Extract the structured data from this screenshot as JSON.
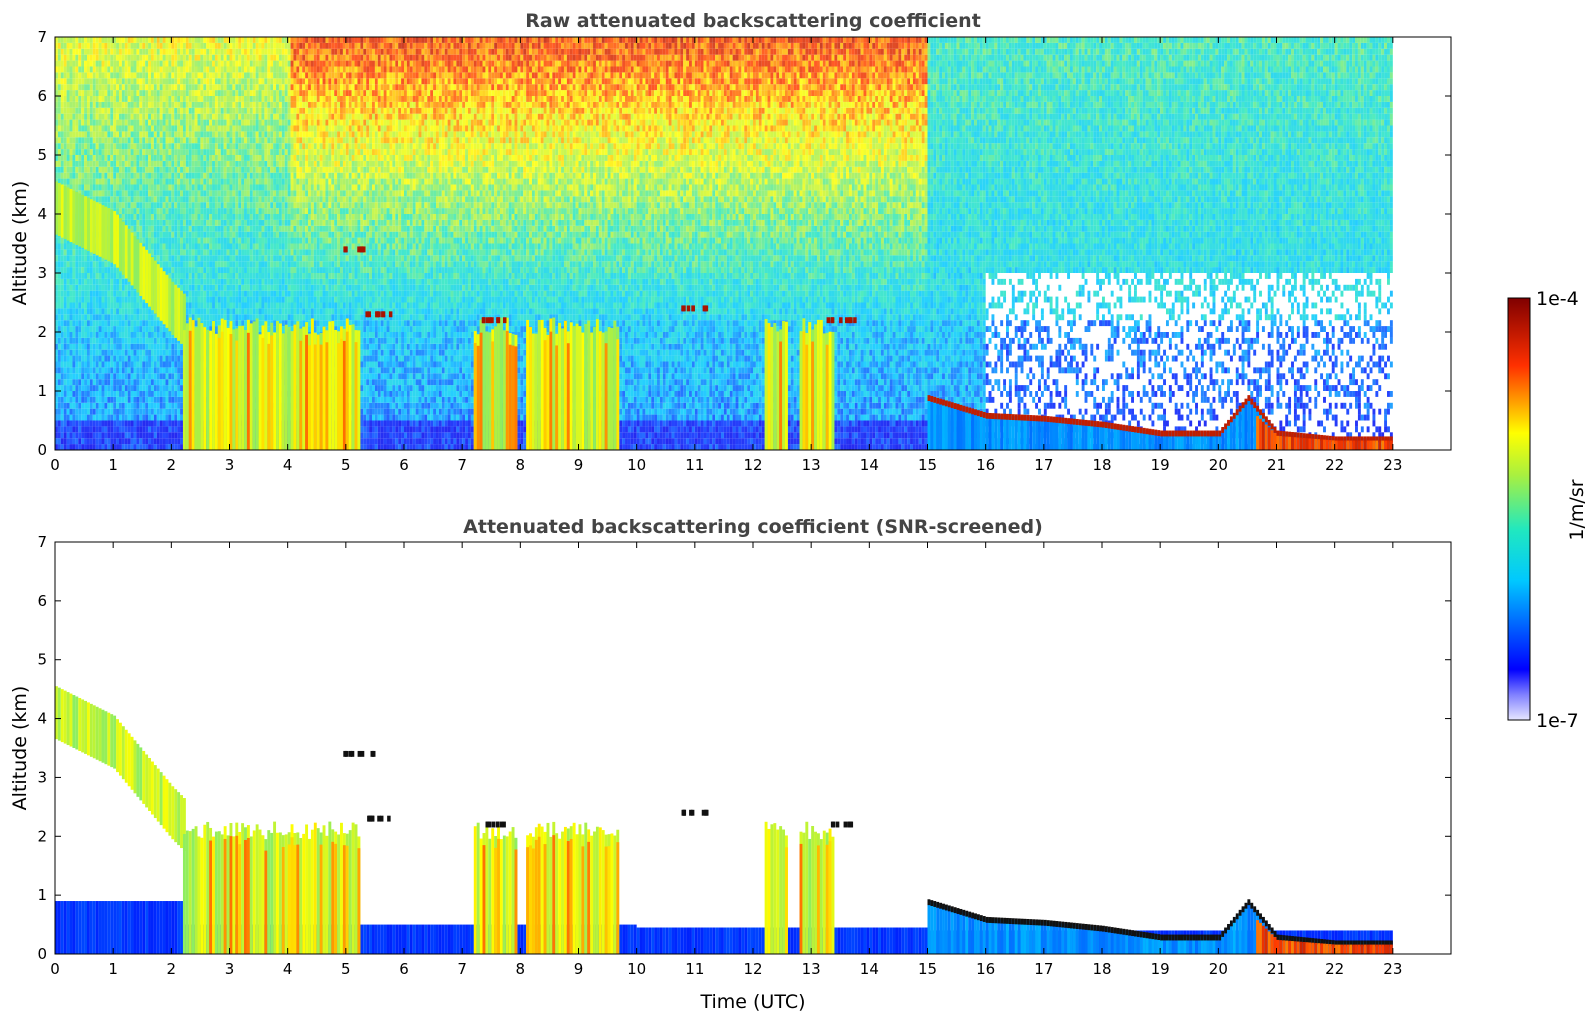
{
  "chart_data": [
    {
      "type": "heatmap",
      "title": "Raw attenuated backscattering coefficient",
      "xlabel": "",
      "ylabel": "Altitude (km)",
      "xlim": [
        0,
        24
      ],
      "ylim": [
        0,
        7
      ],
      "x_ticks": [
        0,
        1,
        2,
        3,
        4,
        5,
        6,
        7,
        8,
        9,
        10,
        11,
        12,
        13,
        14,
        15,
        16,
        17,
        18,
        19,
        20,
        21,
        22,
        23
      ],
      "y_ticks": [
        0,
        1,
        2,
        3,
        4,
        5,
        6,
        7
      ],
      "data_extent_hours": [
        0,
        23
      ],
      "features": {
        "aerosol_layer_descending": [
          [
            0,
            4.1
          ],
          [
            1,
            3.6
          ],
          [
            2,
            2.4
          ],
          [
            2.2,
            2.2
          ]
        ],
        "cloud_tops_km": [
          [
            5.2,
            3.4
          ],
          [
            5.5,
            2.3
          ],
          [
            7.5,
            2.2
          ],
          [
            11.0,
            2.4
          ],
          [
            13.5,
            2.2
          ]
        ],
        "boundary_layer_top": [
          [
            15,
            0.9
          ],
          [
            16,
            0.6
          ],
          [
            17,
            0.55
          ],
          [
            18,
            0.45
          ],
          [
            19,
            0.3
          ],
          [
            20,
            0.3
          ],
          [
            20.5,
            0.9
          ],
          [
            21,
            0.3
          ],
          [
            22,
            0.2
          ],
          [
            23,
            0.2
          ]
        ]
      }
    },
    {
      "type": "heatmap",
      "title": "Attenuated backscattering coefficient (SNR-screened)",
      "xlabel": "Time (UTC)",
      "ylabel": "Altitude (km)",
      "xlim": [
        0,
        24
      ],
      "ylim": [
        0,
        7
      ],
      "x_ticks": [
        0,
        1,
        2,
        3,
        4,
        5,
        6,
        7,
        8,
        9,
        10,
        11,
        12,
        13,
        14,
        15,
        16,
        17,
        18,
        19,
        20,
        21,
        22,
        23
      ],
      "y_ticks": [
        0,
        1,
        2,
        3,
        4,
        5,
        6,
        7
      ],
      "data_extent_hours": [
        0,
        23
      ]
    }
  ],
  "colorbar": {
    "label": "1/m/sr",
    "min_label": "1e-7",
    "max_label": "1e-4",
    "scale": "log",
    "colormap": "jet"
  }
}
